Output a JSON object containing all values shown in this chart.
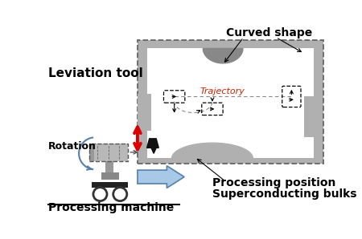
{
  "bg_color": "#ffffff",
  "gray_color": "#b0b0b0",
  "dark_gray": "#666666",
  "light_gray": "#cccccc",
  "black": "#000000",
  "red": "#dd0000",
  "blue_arrow": "#a8c8e8",
  "blue_line": "#5580aa",
  "trajectory_color": "#cc2200",
  "labels": {
    "curved_shape": "Curved shape",
    "leviation_tool": "Leviation tool",
    "trajectory": "Trajectory",
    "processing_position": "Processing position",
    "superconducting_bulks": "Superconducting bulks",
    "processing_machine": "Processing machine",
    "rotation": "Rotation"
  }
}
